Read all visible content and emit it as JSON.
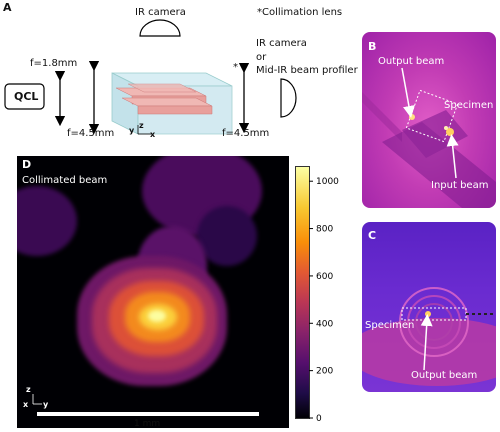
{
  "panels": {
    "A": "A",
    "B": "B",
    "C": "C",
    "D": "D"
  },
  "panel_a": {
    "ir_camera_top": "IR camera",
    "collimation_note": "*Collimation lens",
    "qcl": "QCL",
    "f1": "f=1.8mm",
    "f2": "f=4.5mm",
    "f3": "f=4.5mm",
    "asterisk": "*",
    "right_line1": "IR camera",
    "right_line2": "or",
    "right_line3": "Mid-IR beam profiler",
    "axis_y": "y",
    "axis_z": "z",
    "axis_x": "x"
  },
  "panel_b": {
    "output_beam": "Output beam",
    "specimen": "Specimen",
    "input_beam": "Input beam"
  },
  "panel_c": {
    "specimen": "Specimen",
    "output_beam": "Output beam"
  },
  "panel_d": {
    "title": "Collimated beam",
    "scale_bar": "1 mm",
    "axis_z": "z",
    "axis_x": "x",
    "axis_y": "y"
  },
  "colorbar": {
    "colormap": "inferno",
    "ticks": [
      "0",
      "200",
      "400",
      "600",
      "800",
      "1000"
    ],
    "tick_values": [
      0,
      200,
      400,
      600,
      800,
      1000
    ],
    "max": 1060
  },
  "colors": {
    "waveguide": "#e8a09c",
    "chip": "#cfe8f0",
    "thermal_bg": "#c23cb4",
    "thermal_c_bg": "#6a2bd0"
  }
}
